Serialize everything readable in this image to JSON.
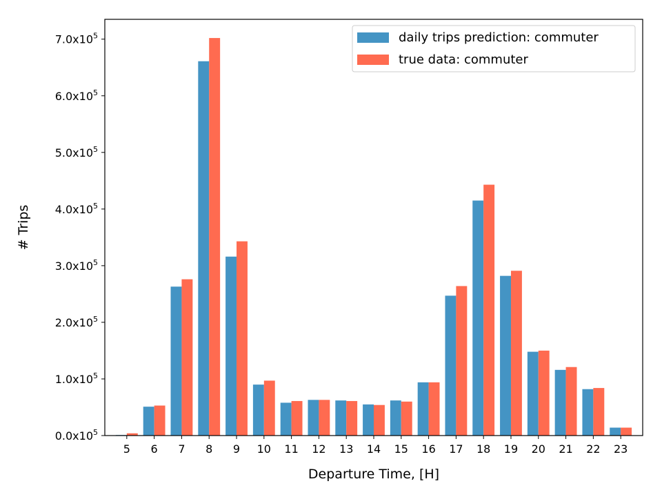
{
  "chart_data": {
    "type": "bar",
    "xlabel": "Departure Time, [H]",
    "ylabel": "# Trips",
    "categories": [
      "5",
      "6",
      "7",
      "8",
      "9",
      "10",
      "11",
      "12",
      "13",
      "14",
      "15",
      "16",
      "17",
      "18",
      "19",
      "20",
      "21",
      "22",
      "23"
    ],
    "series": [
      {
        "name": "daily trips prediction: commuter",
        "color": "#4494c4",
        "values": [
          1000,
          51000,
          263000,
          661000,
          316000,
          90000,
          58000,
          63000,
          62000,
          55000,
          62000,
          94000,
          247000,
          415000,
          282000,
          148000,
          116000,
          82000,
          14000
        ]
      },
      {
        "name": "true data: commuter",
        "color": "#ff6b50",
        "values": [
          4000,
          53000,
          276000,
          702000,
          343000,
          97000,
          61000,
          63000,
          61000,
          54000,
          60000,
          94000,
          264000,
          443000,
          291000,
          150000,
          121000,
          84000,
          14000
        ]
      }
    ],
    "ylim": [
      0,
      735000
    ],
    "yticks": [
      {
        "value": 0,
        "mantissa": "0.0x10",
        "exp": "5"
      },
      {
        "value": 100000,
        "mantissa": "1.0x10",
        "exp": "5"
      },
      {
        "value": 200000,
        "mantissa": "2.0x10",
        "exp": "5"
      },
      {
        "value": 300000,
        "mantissa": "3.0x10",
        "exp": "5"
      },
      {
        "value": 400000,
        "mantissa": "4.0x10",
        "exp": "5"
      },
      {
        "value": 500000,
        "mantissa": "5.0x10",
        "exp": "5"
      },
      {
        "value": 600000,
        "mantissa": "6.0x10",
        "exp": "5"
      },
      {
        "value": 700000,
        "mantissa": "7.0x10",
        "exp": "5"
      }
    ],
    "grid": false,
    "legend_position": "top-right"
  }
}
